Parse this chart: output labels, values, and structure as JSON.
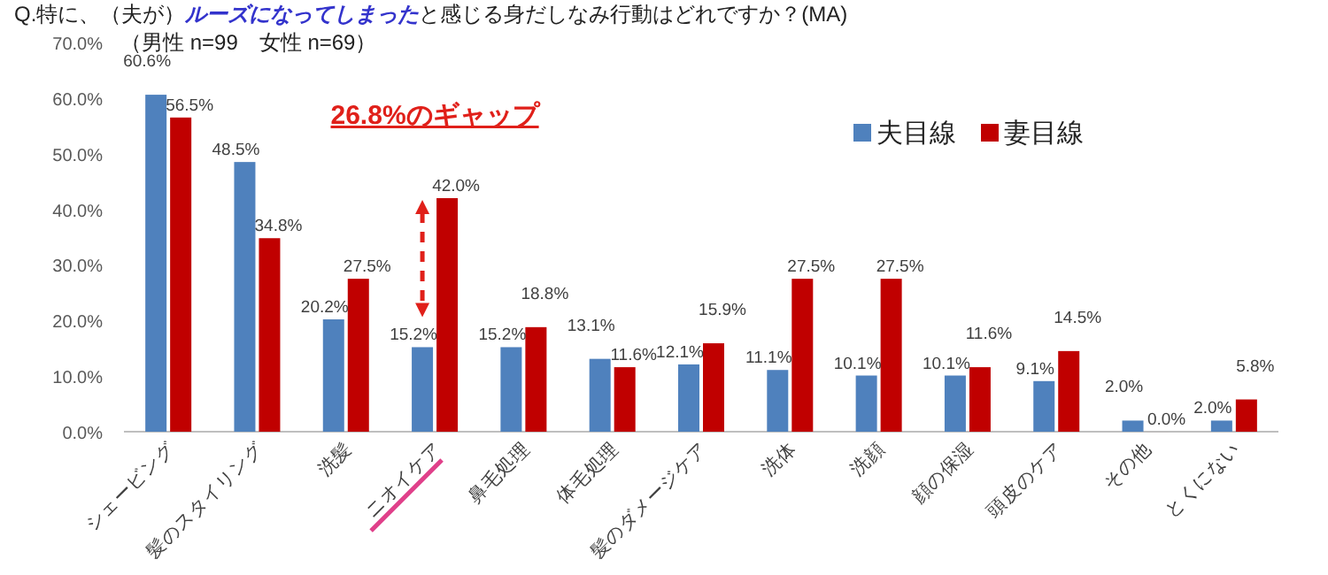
{
  "chart_data": {
    "type": "bar",
    "title": "Q.特に、（夫が）**ルーズになってしまった**と感じる身だしなみ行動はどれですか？(MA)",
    "subtitle": "（男性 n=99　女性 n=69）",
    "categories": [
      "シェービング",
      "髪のスタイリング",
      "洗髪",
      "ニオイケア",
      "鼻毛処理",
      "体毛処理",
      "髪のダメージケア",
      "洗体",
      "洗顔",
      "顔の保湿",
      "頭皮のケア",
      "その他",
      "とくにない"
    ],
    "series": [
      {
        "name": "夫目線",
        "color": "#4f81bd",
        "values": [
          60.6,
          48.5,
          20.2,
          15.2,
          15.2,
          13.1,
          12.1,
          11.1,
          10.1,
          10.1,
          9.1,
          2.0,
          2.0
        ],
        "value_labels": [
          "60.6%",
          "48.5%",
          "20.2%",
          "15.2%",
          "15.2%",
          "13.1%",
          "12.1%",
          "11.1%",
          "10.1%",
          "10.1%",
          "9.1%",
          "2.0%",
          "2.0%"
        ]
      },
      {
        "name": "妻目線",
        "color": "#c00000",
        "values": [
          56.5,
          34.8,
          27.5,
          42.0,
          18.8,
          11.6,
          15.9,
          27.5,
          27.5,
          11.6,
          14.5,
          0.0,
          5.8
        ],
        "value_labels": [
          "56.5%",
          "34.8%",
          "27.5%",
          "42.0%",
          "18.8%",
          "11.6%",
          "15.9%",
          "27.5%",
          "27.5%",
          "11.6%",
          "14.5%",
          "0.0%",
          "5.8%"
        ]
      }
    ],
    "ylim": [
      0,
      70
    ],
    "yticks": [
      {
        "value": 0,
        "label": "0.0%"
      },
      {
        "value": 10,
        "label": "10.0%"
      },
      {
        "value": 20,
        "label": "20.0%"
      },
      {
        "value": 30,
        "label": "30.0%"
      },
      {
        "value": 40,
        "label": "40.0%"
      },
      {
        "value": 50,
        "label": "50.0%"
      },
      {
        "value": 60,
        "label": "60.0%"
      },
      {
        "value": 70,
        "label": "70.0%"
      }
    ],
    "annotations": [
      {
        "text": "26.8%のギャップ",
        "x": "ニオイケア",
        "y": 42.0
      }
    ],
    "legend": "top right",
    "grid": false
  }
}
